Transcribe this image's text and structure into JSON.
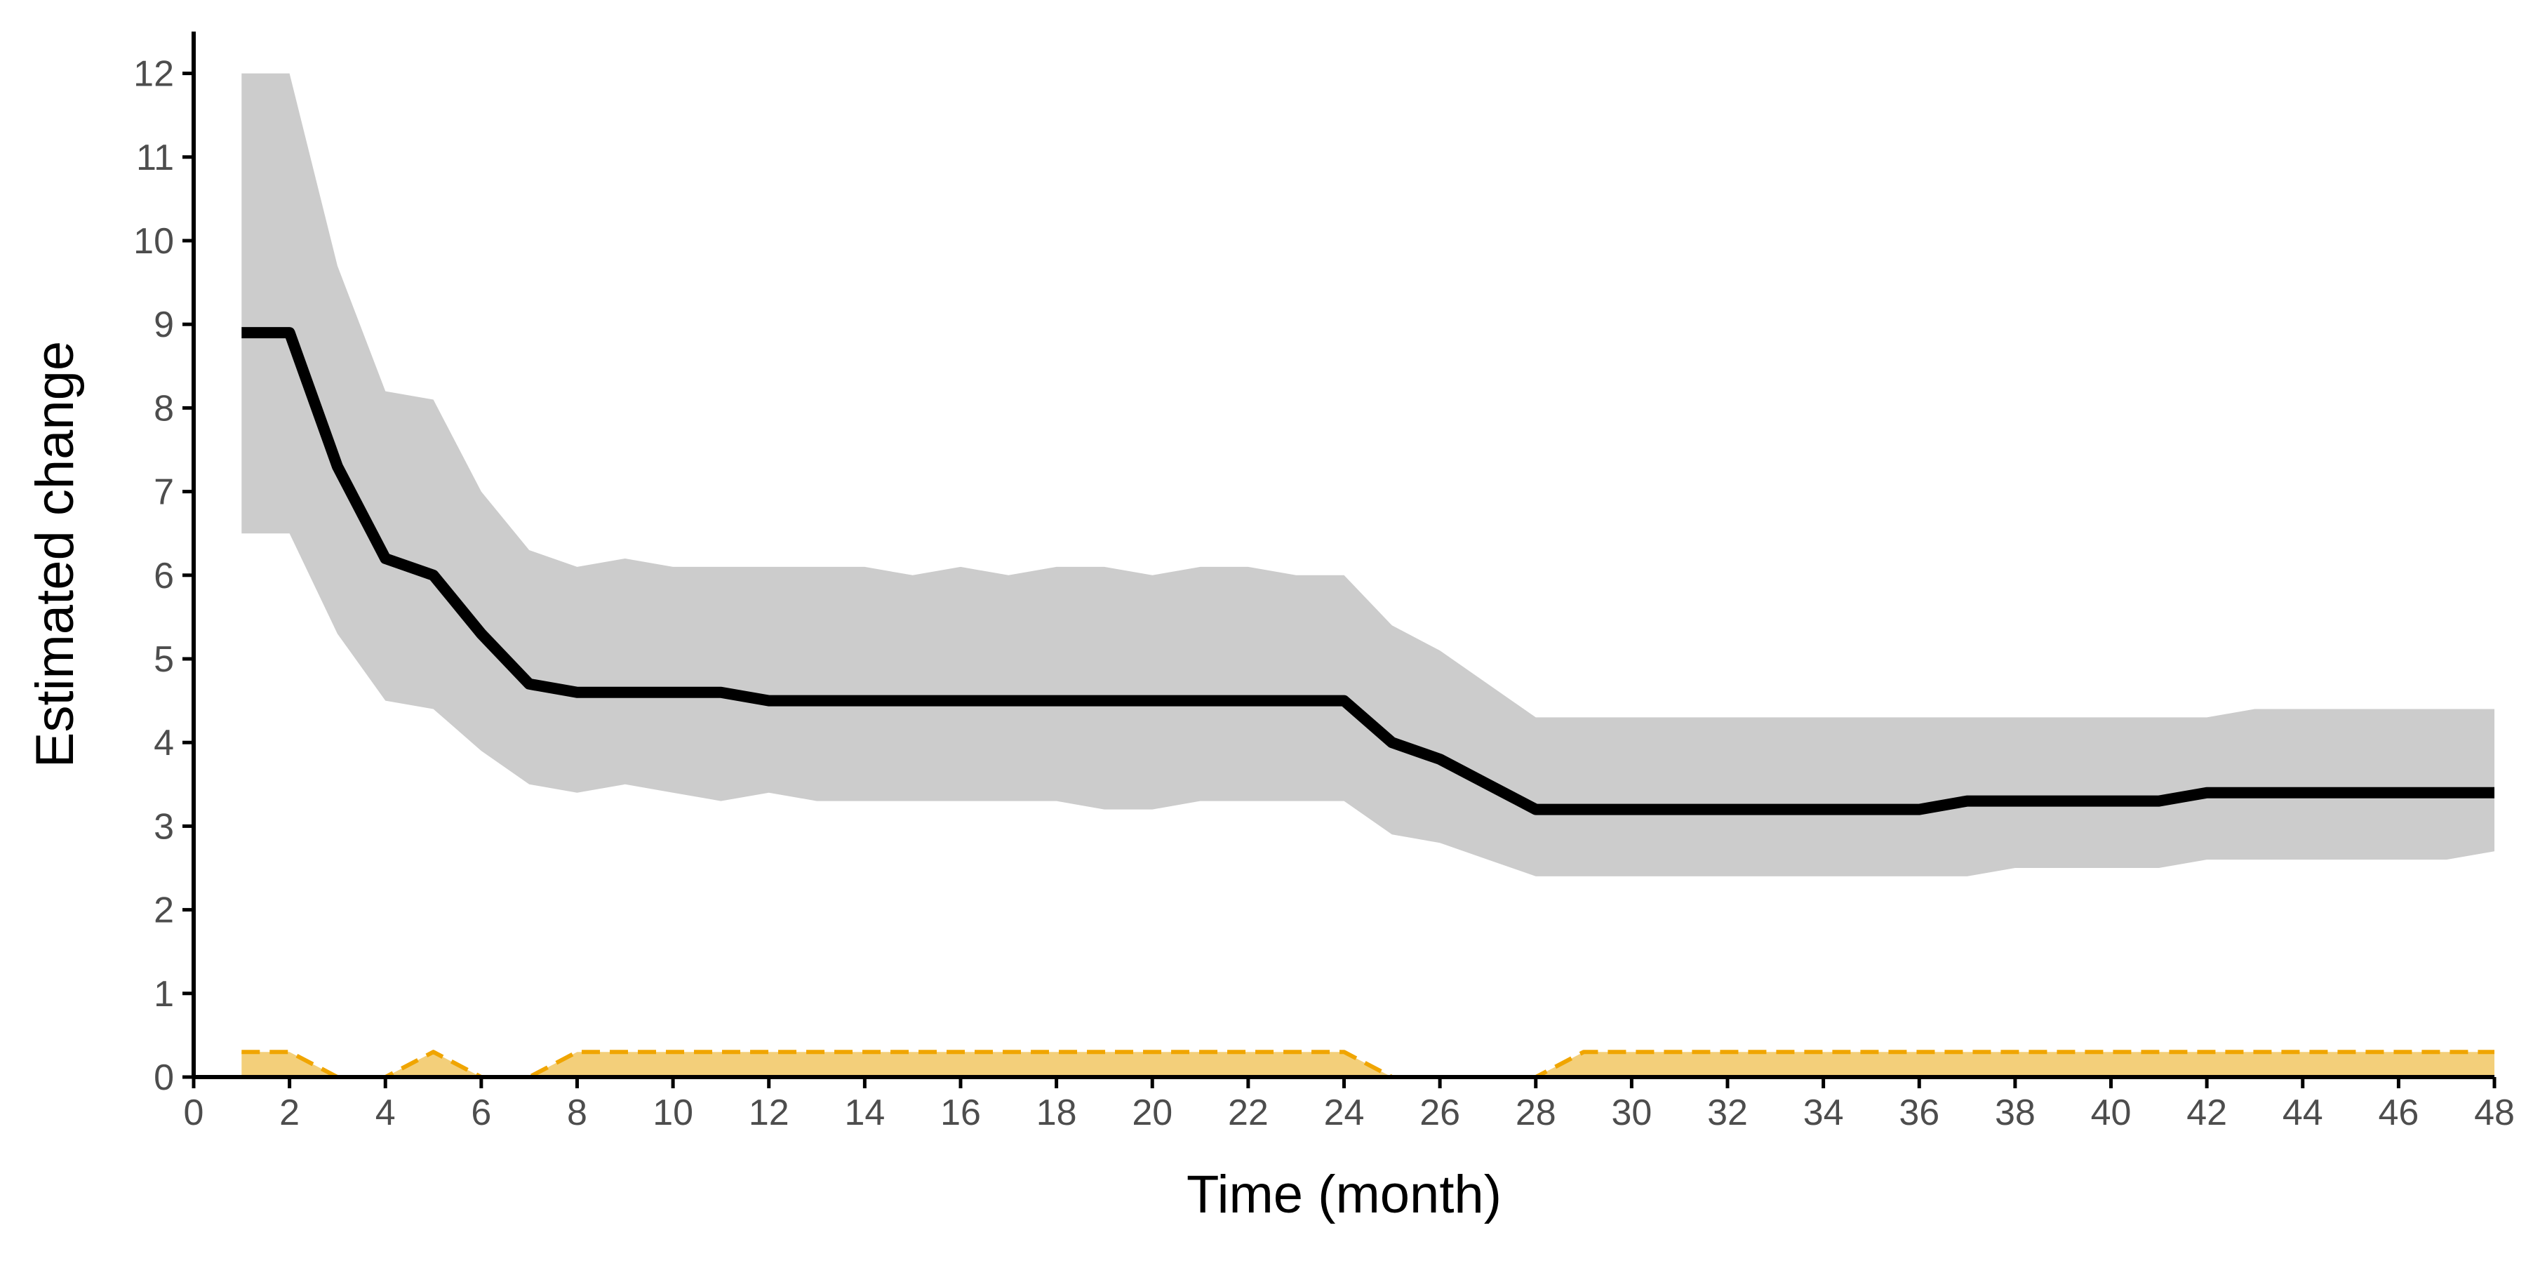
{
  "chart_data": {
    "type": "line",
    "title": "",
    "xlabel": "Time (month)",
    "ylabel": "Estimated change",
    "xlim": [
      0,
      48
    ],
    "ylim": [
      0,
      12.5
    ],
    "x_ticks": [
      0,
      2,
      4,
      6,
      8,
      10,
      12,
      14,
      16,
      18,
      20,
      22,
      24,
      26,
      28,
      30,
      32,
      34,
      36,
      38,
      40,
      42,
      44,
      46,
      48
    ],
    "y_ticks": [
      0,
      1,
      2,
      3,
      4,
      5,
      6,
      7,
      8,
      9,
      10,
      11,
      12
    ],
    "grid": false,
    "legend": "none",
    "colors": {
      "estimate_line": "#000000",
      "ci_band": "#cccccc",
      "lower_line": "#f0a500",
      "lower_band": "#f3cf7a"
    },
    "series": [
      {
        "style": "solid",
        "color": "#000000",
        "x": [
          1,
          2,
          3,
          4,
          5,
          6,
          7,
          8,
          9,
          10,
          11,
          12,
          13,
          14,
          15,
          16,
          17,
          18,
          19,
          20,
          21,
          22,
          23,
          24,
          25,
          26,
          27,
          28,
          29,
          30,
          31,
          32,
          33,
          34,
          35,
          36,
          37,
          38,
          39,
          40,
          41,
          42,
          43,
          44,
          45,
          46,
          47,
          48
        ],
        "y": [
          8.9,
          8.9,
          7.3,
          6.2,
          6.0,
          5.3,
          4.7,
          4.6,
          4.6,
          4.6,
          4.6,
          4.5,
          4.5,
          4.5,
          4.5,
          4.5,
          4.5,
          4.5,
          4.5,
          4.5,
          4.5,
          4.5,
          4.5,
          4.5,
          4.0,
          3.8,
          3.5,
          3.2,
          3.2,
          3.2,
          3.2,
          3.2,
          3.2,
          3.2,
          3.2,
          3.2,
          3.3,
          3.3,
          3.3,
          3.3,
          3.3,
          3.4,
          3.4,
          3.4,
          3.4,
          3.4,
          3.4,
          3.4
        ],
        "ci_lower": [
          6.5,
          6.5,
          5.3,
          4.5,
          4.4,
          3.9,
          3.5,
          3.4,
          3.5,
          3.4,
          3.3,
          3.4,
          3.3,
          3.3,
          3.3,
          3.3,
          3.3,
          3.3,
          3.2,
          3.2,
          3.3,
          3.3,
          3.3,
          3.3,
          2.9,
          2.8,
          2.6,
          2.4,
          2.4,
          2.4,
          2.4,
          2.4,
          2.4,
          2.4,
          2.4,
          2.4,
          2.4,
          2.5,
          2.5,
          2.5,
          2.5,
          2.6,
          2.6,
          2.6,
          2.6,
          2.6,
          2.6,
          2.7
        ],
        "ci_upper": [
          12.0,
          12.0,
          9.7,
          8.2,
          8.1,
          7.0,
          6.3,
          6.1,
          6.2,
          6.1,
          6.1,
          6.1,
          6.1,
          6.1,
          6.0,
          6.1,
          6.0,
          6.1,
          6.1,
          6.0,
          6.1,
          6.1,
          6.0,
          6.0,
          5.4,
          5.1,
          4.7,
          4.3,
          4.3,
          4.3,
          4.3,
          4.3,
          4.3,
          4.3,
          4.3,
          4.3,
          4.3,
          4.3,
          4.3,
          4.3,
          4.3,
          4.3,
          4.4,
          4.4,
          4.4,
          4.4,
          4.4,
          4.4
        ]
      },
      {
        "style": "dashed",
        "color": "#f0a500",
        "x": [
          1,
          2,
          3,
          4,
          5,
          6,
          7,
          8,
          9,
          10,
          11,
          12,
          13,
          14,
          15,
          16,
          17,
          18,
          19,
          20,
          21,
          22,
          23,
          24,
          25,
          26,
          27,
          28,
          29,
          30,
          31,
          32,
          33,
          34,
          35,
          36,
          37,
          38,
          39,
          40,
          41,
          42,
          43,
          44,
          45,
          46,
          47,
          48
        ],
        "y": [
          0.3,
          0.3,
          0,
          0,
          0.3,
          0,
          0,
          0.3,
          0.3,
          0.3,
          0.3,
          0.3,
          0.3,
          0.3,
          0.3,
          0.3,
          0.3,
          0.3,
          0.3,
          0.3,
          0.3,
          0.3,
          0.3,
          0.3,
          0,
          0,
          0,
          0,
          0.3,
          0.3,
          0.3,
          0.3,
          0.3,
          0.3,
          0.3,
          0.3,
          0.3,
          0.3,
          0.3,
          0.3,
          0.3,
          0.3,
          0.3,
          0.3,
          0.3,
          0.3,
          0.3,
          0.3
        ]
      }
    ]
  }
}
